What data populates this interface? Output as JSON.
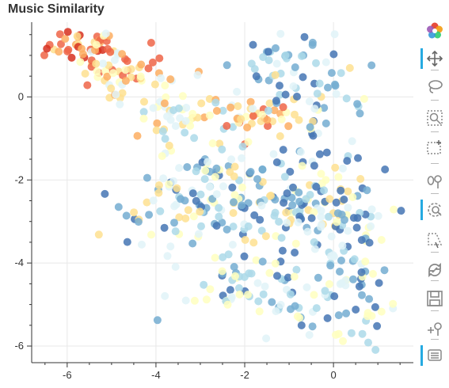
{
  "title": "Music Similarity",
  "chart_data": {
    "type": "scatter",
    "title": "Music Similarity",
    "xlabel": "",
    "ylabel": "",
    "xlim": [
      -6.8,
      1.8
    ],
    "ylim": [
      -6.4,
      1.8
    ],
    "xticks": [
      "-6",
      "-4",
      "-2",
      "0"
    ],
    "yticks": [
      "0",
      "-2",
      "-4",
      "-6"
    ],
    "grid": true,
    "legend": "none",
    "palette": [
      "#d7301f",
      "#ef6548",
      "#fdae61",
      "#fee090",
      "#ffffbf",
      "#e0f3f8",
      "#abd9e9",
      "#74add1",
      "#4575b4"
    ],
    "clusters": [
      {
        "cx": -5.6,
        "cy": 1.2,
        "sx": 0.5,
        "sy": 0.25,
        "n": 40,
        "color_range": [
          0,
          3
        ]
      },
      {
        "cx": -4.8,
        "cy": 0.6,
        "sx": 0.6,
        "sy": 0.35,
        "n": 55,
        "color_range": [
          1,
          5
        ]
      },
      {
        "cx": -3.2,
        "cy": -0.4,
        "sx": 0.7,
        "sy": 0.35,
        "n": 60,
        "color_range": [
          2,
          6
        ]
      },
      {
        "cx": -1.8,
        "cy": -0.5,
        "sx": 0.4,
        "sy": 0.25,
        "n": 30,
        "color_range": [
          1,
          4
        ]
      },
      {
        "cx": -1.2,
        "cy": 0.9,
        "sx": 0.6,
        "sy": 0.35,
        "n": 35,
        "color_range": [
          5,
          8
        ]
      },
      {
        "cx": -0.2,
        "cy": -0.4,
        "sx": 0.6,
        "sy": 0.5,
        "n": 40,
        "color_range": [
          3,
          8
        ]
      },
      {
        "cx": -3.0,
        "cy": -2.6,
        "sx": 0.9,
        "sy": 0.8,
        "n": 120,
        "color_range": [
          3,
          8
        ]
      },
      {
        "cx": -1.0,
        "cy": -2.6,
        "sx": 0.9,
        "sy": 0.8,
        "n": 110,
        "color_range": [
          3,
          8
        ]
      },
      {
        "cx": 0.4,
        "cy": -3.0,
        "sx": 0.6,
        "sy": 0.6,
        "n": 60,
        "color_range": [
          4,
          8
        ]
      },
      {
        "cx": -1.6,
        "cy": -4.6,
        "sx": 0.8,
        "sy": 0.5,
        "n": 70,
        "color_range": [
          4,
          8
        ]
      },
      {
        "cx": 0.3,
        "cy": -5.0,
        "sx": 0.6,
        "sy": 0.6,
        "n": 50,
        "color_range": [
          4,
          8
        ]
      }
    ]
  },
  "toolbar": {
    "tools": [
      {
        "name": "bokeh-logo-icon",
        "interactable": false
      },
      {
        "name": "pan-tool-icon",
        "interactable": true,
        "active": true
      },
      {
        "name": "lasso-select-tool-icon",
        "interactable": true
      },
      {
        "name": "box-zoom-tool-icon",
        "interactable": true
      },
      {
        "name": "box-select-tool-icon",
        "interactable": true
      },
      {
        "name": "tap-tool-icon",
        "interactable": true
      },
      {
        "name": "wheel-zoom-tool-icon",
        "interactable": true,
        "active": true
      },
      {
        "name": "poly-select-tool-icon",
        "interactable": true
      },
      {
        "name": "reset-tool-icon",
        "interactable": true
      },
      {
        "name": "save-tool-icon",
        "interactable": true
      },
      {
        "name": "zoom-in-tool-icon",
        "interactable": true
      },
      {
        "name": "hover-tool-icon",
        "interactable": true,
        "active": true
      }
    ]
  }
}
